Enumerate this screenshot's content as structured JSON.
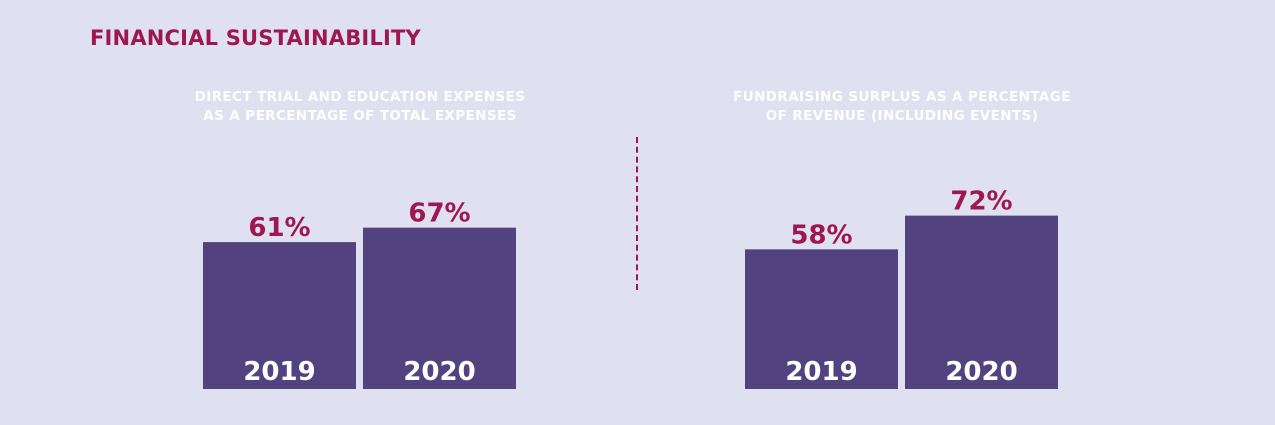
{
  "page": {
    "title": "FINANCIAL SUSTAINABILITY"
  },
  "colors": {
    "background": "#dfe0f0",
    "title": "#9d1750",
    "bar": "#534280",
    "value_label": "#9d1750",
    "subtitle": "#ffffff",
    "divider": "#9d1750"
  },
  "chart_data": [
    {
      "type": "bar",
      "title": "DIRECT TRIAL AND EDUCATION EXPENSES AS A PERCENTAGE OF TOTAL EXPENSES",
      "title_lines": [
        "DIRECT TRIAL AND EDUCATION EXPENSES",
        "AS A PERCENTAGE OF TOTAL EXPENSES"
      ],
      "categories": [
        "2019",
        "2020"
      ],
      "values": [
        61,
        67
      ],
      "value_labels": [
        "61%",
        "67%"
      ],
      "unit": "%",
      "xlabel": "",
      "ylabel": "",
      "grid": false
    },
    {
      "type": "bar",
      "title": "FUNDRAISING SURPLUS AS A PERCENTAGE OF REVENUE (INCLUDING EVENTS)",
      "title_lines": [
        "FUNDRAISING SURPLUS AS A PERCENTAGE",
        "OF REVENUE (INCLUDING EVENTS)"
      ],
      "categories": [
        "2019",
        "2020"
      ],
      "values": [
        58,
        72
      ],
      "value_labels": [
        "58%",
        "72%"
      ],
      "unit": "%",
      "xlabel": "",
      "ylabel": "",
      "grid": false
    }
  ]
}
